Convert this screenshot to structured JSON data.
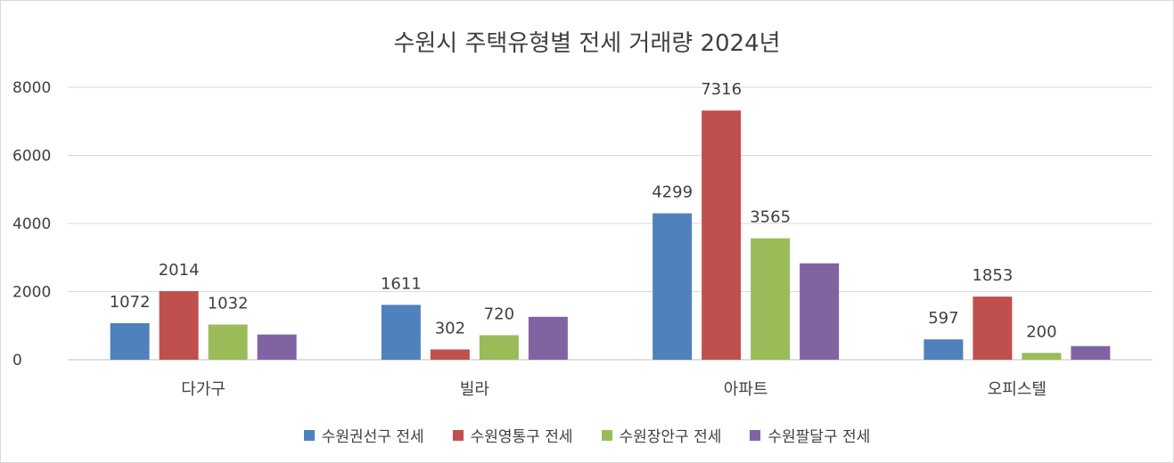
{
  "chart_data": {
    "type": "bar",
    "title": "수원시 주택유형별 전세 거래량 2024년",
    "xlabel": "",
    "ylabel": "",
    "categories": [
      "다가구",
      "빌라",
      "아파트",
      "오피스텔"
    ],
    "ylim": [
      0,
      8000
    ],
    "yticks": [
      0,
      2000,
      4000,
      6000,
      8000
    ],
    "grid": true,
    "legend_position": "bottom",
    "series": [
      {
        "name": "수원권선구 전세",
        "color": "#4f81bd",
        "values": [
          1072,
          1611,
          4299,
          597
        ],
        "labels": [
          "1072",
          "1611",
          "4299",
          "597"
        ]
      },
      {
        "name": "수원영통구 전세",
        "color": "#c0504d",
        "values": [
          2014,
          302,
          7316,
          1853
        ],
        "labels": [
          "2014",
          "302",
          "7316",
          "1853"
        ]
      },
      {
        "name": "수원장안구 전세",
        "color": "#9bbb59",
        "values": [
          1032,
          720,
          3565,
          200
        ],
        "labels": [
          "1032",
          "720",
          "3565",
          "200"
        ]
      },
      {
        "name": "수원팔달구 전세",
        "color": "#8064a2",
        "values": [
          740,
          1260,
          2830,
          400
        ],
        "labels": [
          "",
          "",
          "",
          ""
        ]
      }
    ]
  }
}
